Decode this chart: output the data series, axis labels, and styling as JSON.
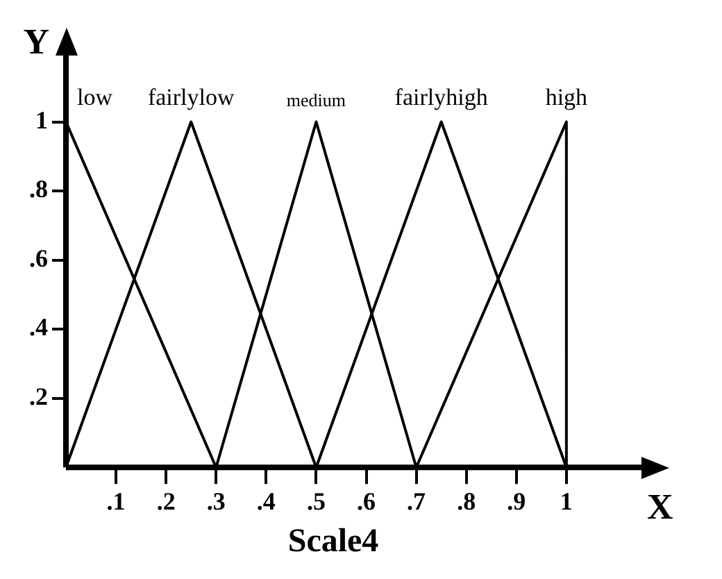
{
  "chart_data": {
    "type": "line",
    "title": "Scale4",
    "xlabel": "X",
    "ylabel": "Y",
    "series": [
      {
        "name": "low",
        "color": "#000000",
        "x": [
          0,
          0.3
        ],
        "values": [
          1,
          0
        ]
      },
      {
        "name": "fairlylow",
        "color": "#000000",
        "x": [
          0,
          0.25,
          0.5
        ],
        "values": [
          0,
          1,
          0
        ]
      },
      {
        "name": "medium",
        "color": "#000000",
        "x": [
          0.3,
          0.5,
          0.7
        ],
        "values": [
          0,
          1,
          0
        ]
      },
      {
        "name": "fairlyhigh",
        "color": "#000000",
        "x": [
          0.5,
          0.75,
          1
        ],
        "values": [
          0,
          1,
          0
        ]
      },
      {
        "name": "high",
        "color": "#000000",
        "x": [
          0.7,
          1,
          1
        ],
        "values": [
          0,
          1,
          0
        ]
      }
    ],
    "xlim": [
      0,
      1.15
    ],
    "ylim": [
      0,
      1.2
    ],
    "xticks": [
      {
        "value": 0.1,
        "label": ".1"
      },
      {
        "value": 0.2,
        "label": ".2"
      },
      {
        "value": 0.3,
        "label": ".3"
      },
      {
        "value": 0.4,
        "label": ".4"
      },
      {
        "value": 0.5,
        "label": ".5"
      },
      {
        "value": 0.6,
        "label": ".6"
      },
      {
        "value": 0.7,
        "label": ".7"
      },
      {
        "value": 0.8,
        "label": ".8"
      },
      {
        "value": 0.9,
        "label": ".9"
      },
      1
    ],
    "yticks": [
      {
        "value": 0.2,
        "label": ".2"
      },
      {
        "value": 0.4,
        "label": ".4"
      },
      {
        "value": 0.6,
        "label": ".6"
      },
      {
        "value": 0.8,
        "label": ".8"
      },
      1
    ],
    "grid": false,
    "legend": false,
    "marker": "none",
    "line_style": "solid"
  }
}
